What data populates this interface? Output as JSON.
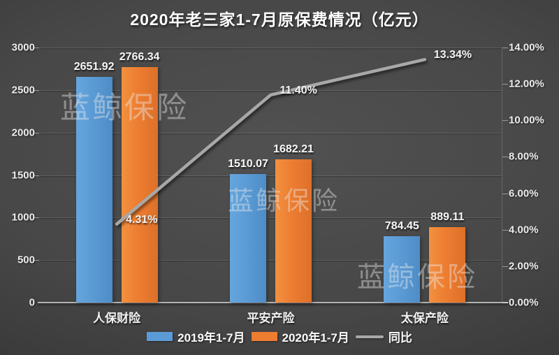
{
  "title": "2020年老三家1-7月原保费情况（亿元）",
  "watermark": "蓝鲸保险",
  "colors": {
    "bar_2019": "#5B9BD5",
    "bar_2020": "#ED7D31",
    "line": "#A8A8A8",
    "background_center": "#515151",
    "background_edge": "#2b2b2b",
    "text": "#F2F2F2"
  },
  "chart_data": {
    "type": "bar",
    "title": "2020年老三家1-7月原保费情况（亿元）",
    "categories": [
      "人保财险",
      "平安产险",
      "太保产险"
    ],
    "series": [
      {
        "name": "2019年1-7月",
        "type": "bar",
        "color": "#5B9BD5",
        "values": [
          2651.92,
          1510.07,
          784.45
        ]
      },
      {
        "name": "2020年1-7月",
        "type": "bar",
        "color": "#ED7D31",
        "values": [
          2766.34,
          1682.21,
          889.11
        ]
      },
      {
        "name": "同比",
        "type": "line",
        "color": "#A8A8A8",
        "values": [
          4.31,
          11.4,
          13.34
        ],
        "labels": [
          "4.31%",
          "11.40%",
          "13.34%"
        ]
      }
    ],
    "left_axis": {
      "min": 0,
      "max": 3000,
      "ticks": [
        "3000",
        "2500",
        "2000",
        "1500",
        "1000",
        "500",
        "0"
      ]
    },
    "right_axis": {
      "min": 0,
      "max": 14,
      "ticks": [
        "14.00%",
        "12.00%",
        "10.00%",
        "8.00%",
        "6.00%",
        "4.00%",
        "2.00%",
        "0.00%"
      ]
    },
    "grid": true,
    "legend_position": "bottom",
    "legend": [
      "2019年1-7月",
      "2020年1-7月",
      "同比"
    ]
  }
}
